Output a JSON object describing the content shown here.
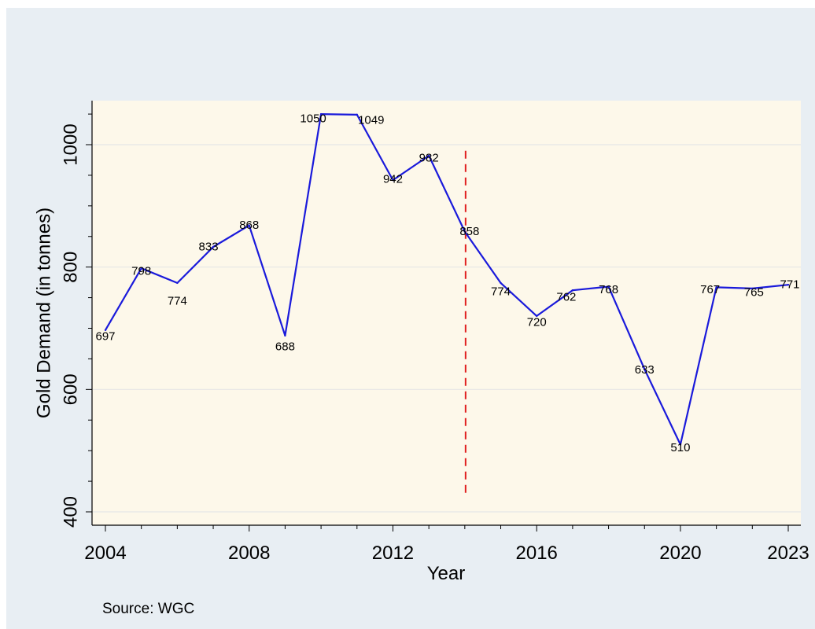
{
  "chart_data": {
    "type": "line",
    "ylabel": "Gold Demand (in tonnes)",
    "xlabel": "Year",
    "ylim": [
      400,
      1060
    ],
    "xlim": [
      2004,
      2023
    ],
    "x_ticks": [
      2004,
      2008,
      2012,
      2016,
      2020,
      2023
    ],
    "y_ticks": [
      400,
      600,
      800,
      1000
    ],
    "grid": true,
    "series": [
      {
        "x": [
          2004,
          2005,
          2006,
          2007,
          2008,
          2009,
          2010,
          2011,
          2012,
          2013,
          2014,
          2015,
          2016,
          2017,
          2018,
          2019,
          2020,
          2021,
          2022,
          2023
        ],
        "values": [
          697,
          798,
          774,
          833,
          868,
          688,
          1050,
          1049,
          942,
          982,
          858,
          774,
          720,
          762,
          768,
          633,
          510,
          767,
          765,
          771
        ],
        "color": "#1a1adb"
      }
    ],
    "vertical_marker": {
      "x": 2014,
      "y_range": [
        430,
        990
      ],
      "color": "#e02020",
      "style": "dashed"
    },
    "background_color": "#fdf8ea"
  },
  "source_note": "Source: WGC"
}
